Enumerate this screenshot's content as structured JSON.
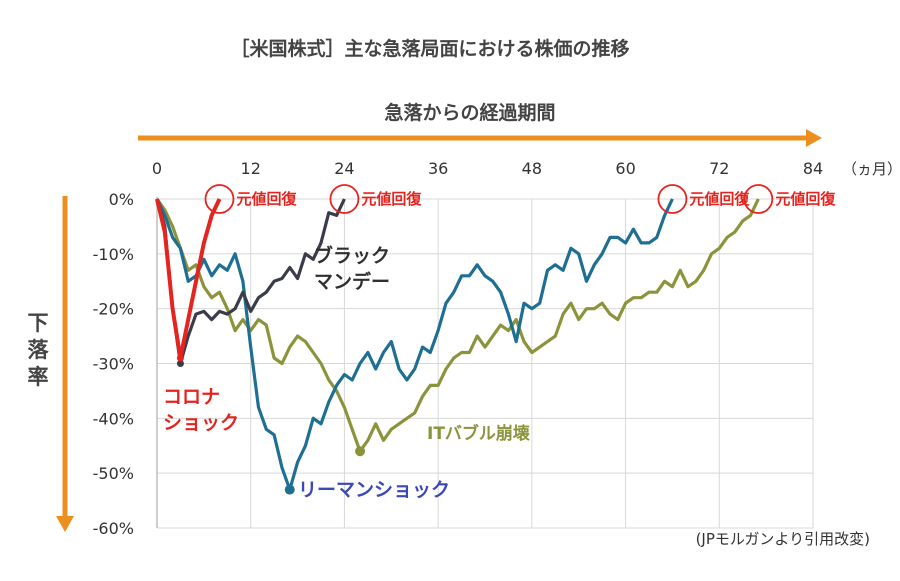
{
  "chart_data": {
    "type": "line",
    "title": "［米国株式］主な急落局面における株価の推移",
    "xlabel": "急落からの経過期間",
    "x_unit": "（ヵ月）",
    "ylabel": "下落率",
    "xlim": [
      0,
      84
    ],
    "ylim": [
      -60,
      0
    ],
    "x_ticks": [
      {
        "value": 0,
        "label": "0"
      },
      {
        "value": 12,
        "label": "12"
      },
      {
        "value": 24,
        "label": "24"
      },
      {
        "value": 36,
        "label": "36"
      },
      {
        "value": 48,
        "label": "48"
      },
      {
        "value": 60,
        "label": "60"
      },
      {
        "value": 72,
        "label": "72"
      },
      {
        "value": 84,
        "label": "84"
      }
    ],
    "y_ticks": [
      {
        "value": 0,
        "label": "0%"
      },
      {
        "value": -10,
        "label": "-10%"
      },
      {
        "value": -20,
        "label": "-20%"
      },
      {
        "value": -30,
        "label": "-30%"
      },
      {
        "value": -40,
        "label": "-40%"
      },
      {
        "value": -50,
        "label": "-50%"
      },
      {
        "value": -60,
        "label": "-60%"
      }
    ],
    "grid": {
      "horizontal": true,
      "vertical": true
    },
    "recovery_label": "元値回復",
    "source_note": "(JPモルガンより引用改変)",
    "series": [
      {
        "name": "コロナショック",
        "label_lines": [
          "コロナ",
          "ショック"
        ],
        "color": "#e52420",
        "values": [
          [
            0,
            0
          ],
          [
            1,
            -6
          ],
          [
            2,
            -20
          ],
          [
            3,
            -29
          ],
          [
            4,
            -22
          ],
          [
            5,
            -15
          ],
          [
            6,
            -8
          ],
          [
            7,
            -3
          ],
          [
            8,
            0
          ]
        ]
      },
      {
        "name": "ブラックマンデー",
        "label_lines": [
          "ブラック",
          "マンデー"
        ],
        "color": "#3b3c4a",
        "values": [
          [
            0,
            0
          ],
          [
            1,
            -5
          ],
          [
            2,
            -20
          ],
          [
            3,
            -30
          ],
          [
            4,
            -25
          ],
          [
            5,
            -21
          ],
          [
            6,
            -20.5
          ],
          [
            7,
            -22
          ],
          [
            8,
            -20.5
          ],
          [
            9,
            -21
          ],
          [
            10,
            -20
          ],
          [
            11,
            -17
          ],
          [
            12,
            -20.5
          ],
          [
            13,
            -18
          ],
          [
            14,
            -17
          ],
          [
            15,
            -15
          ],
          [
            16,
            -14.5
          ],
          [
            17,
            -12.5
          ],
          [
            18,
            -14.5
          ],
          [
            19,
            -10
          ],
          [
            20,
            -11
          ],
          [
            21,
            -8
          ],
          [
            22,
            -2.5
          ],
          [
            23,
            -3
          ],
          [
            24,
            0
          ]
        ]
      },
      {
        "name": "リーマンショック",
        "label_lines": [
          "リーマンショック"
        ],
        "color": "#1f6f93",
        "values": [
          [
            0,
            0
          ],
          [
            1,
            -3
          ],
          [
            2,
            -7
          ],
          [
            3,
            -9
          ],
          [
            4,
            -15
          ],
          [
            5,
            -14
          ],
          [
            6,
            -11
          ],
          [
            7,
            -14
          ],
          [
            8,
            -12
          ],
          [
            9,
            -13
          ],
          [
            10,
            -10
          ],
          [
            11,
            -15
          ],
          [
            12,
            -27
          ],
          [
            13,
            -38
          ],
          [
            14,
            -42
          ],
          [
            15,
            -43
          ],
          [
            16,
            -49
          ],
          [
            17,
            -53
          ],
          [
            18,
            -48
          ],
          [
            19,
            -45
          ],
          [
            20,
            -40
          ],
          [
            21,
            -41
          ],
          [
            22,
            -37
          ],
          [
            23,
            -34
          ],
          [
            24,
            -32
          ],
          [
            25,
            -33
          ],
          [
            26,
            -30
          ],
          [
            27,
            -28
          ],
          [
            28,
            -31
          ],
          [
            29,
            -28
          ],
          [
            30,
            -26
          ],
          [
            31,
            -31
          ],
          [
            32,
            -33
          ],
          [
            33,
            -31
          ],
          [
            34,
            -27
          ],
          [
            35,
            -28
          ],
          [
            36,
            -24
          ],
          [
            37,
            -19
          ],
          [
            38,
            -17
          ],
          [
            39,
            -14
          ],
          [
            40,
            -14
          ],
          [
            41,
            -12
          ],
          [
            42,
            -14
          ],
          [
            43,
            -15
          ],
          [
            44,
            -17
          ],
          [
            45,
            -21
          ],
          [
            46,
            -26
          ],
          [
            47,
            -19
          ],
          [
            48,
            -20
          ],
          [
            49,
            -19
          ],
          [
            50,
            -13
          ],
          [
            51,
            -12
          ],
          [
            52,
            -13
          ],
          [
            53,
            -9
          ],
          [
            54,
            -10
          ],
          [
            55,
            -15
          ],
          [
            56,
            -12
          ],
          [
            57,
            -10
          ],
          [
            58,
            -7
          ],
          [
            59,
            -7
          ],
          [
            60,
            -8
          ],
          [
            61,
            -5.5
          ],
          [
            62,
            -8
          ],
          [
            63,
            -8
          ],
          [
            64,
            -7
          ],
          [
            65,
            -3
          ],
          [
            66,
            0
          ]
        ]
      },
      {
        "name": "ITバブル崩壊",
        "label_lines": [
          "ITバブル崩壊"
        ],
        "color": "#8b943b",
        "values": [
          [
            0,
            0
          ],
          [
            1,
            -2
          ],
          [
            2,
            -5
          ],
          [
            3,
            -9
          ],
          [
            4,
            -13
          ],
          [
            5,
            -12
          ],
          [
            6,
            -16
          ],
          [
            7,
            -18
          ],
          [
            8,
            -17
          ],
          [
            9,
            -20
          ],
          [
            10,
            -24
          ],
          [
            11,
            -22
          ],
          [
            12,
            -24
          ],
          [
            13,
            -22
          ],
          [
            14,
            -23
          ],
          [
            15,
            -29
          ],
          [
            16,
            -30
          ],
          [
            17,
            -27
          ],
          [
            18,
            -25
          ],
          [
            19,
            -26
          ],
          [
            20,
            -28
          ],
          [
            21,
            -30
          ],
          [
            22,
            -33
          ],
          [
            23,
            -35
          ],
          [
            24,
            -38
          ],
          [
            25,
            -42
          ],
          [
            26,
            -46
          ],
          [
            27,
            -44
          ],
          [
            28,
            -41
          ],
          [
            29,
            -44
          ],
          [
            30,
            -42
          ],
          [
            31,
            -41
          ],
          [
            32,
            -40
          ],
          [
            33,
            -39
          ],
          [
            34,
            -36
          ],
          [
            35,
            -34
          ],
          [
            36,
            -34
          ],
          [
            37,
            -31
          ],
          [
            38,
            -29
          ],
          [
            39,
            -28
          ],
          [
            40,
            -28
          ],
          [
            41,
            -25
          ],
          [
            42,
            -27
          ],
          [
            43,
            -25
          ],
          [
            44,
            -23
          ],
          [
            45,
            -24
          ],
          [
            46,
            -22
          ],
          [
            47,
            -26
          ],
          [
            48,
            -28
          ],
          [
            49,
            -27
          ],
          [
            50,
            -26
          ],
          [
            51,
            -25
          ],
          [
            52,
            -21
          ],
          [
            53,
            -19
          ],
          [
            54,
            -22
          ],
          [
            55,
            -20
          ],
          [
            56,
            -20
          ],
          [
            57,
            -19
          ],
          [
            58,
            -21
          ],
          [
            59,
            -22
          ],
          [
            60,
            -19
          ],
          [
            61,
            -18
          ],
          [
            62,
            -18
          ],
          [
            63,
            -17
          ],
          [
            64,
            -17
          ],
          [
            65,
            -15
          ],
          [
            66,
            -16
          ],
          [
            67,
            -13
          ],
          [
            68,
            -16
          ],
          [
            69,
            -15
          ],
          [
            70,
            -13
          ],
          [
            71,
            -10
          ],
          [
            72,
            -9
          ],
          [
            73,
            -7
          ],
          [
            74,
            -6
          ],
          [
            75,
            -4
          ],
          [
            76,
            -3
          ],
          [
            77,
            0
          ]
        ]
      }
    ]
  },
  "colors": {
    "axis_arrow": "#ed8f1e",
    "recovery": "#e52420",
    "grid": "#d8d8d8"
  }
}
